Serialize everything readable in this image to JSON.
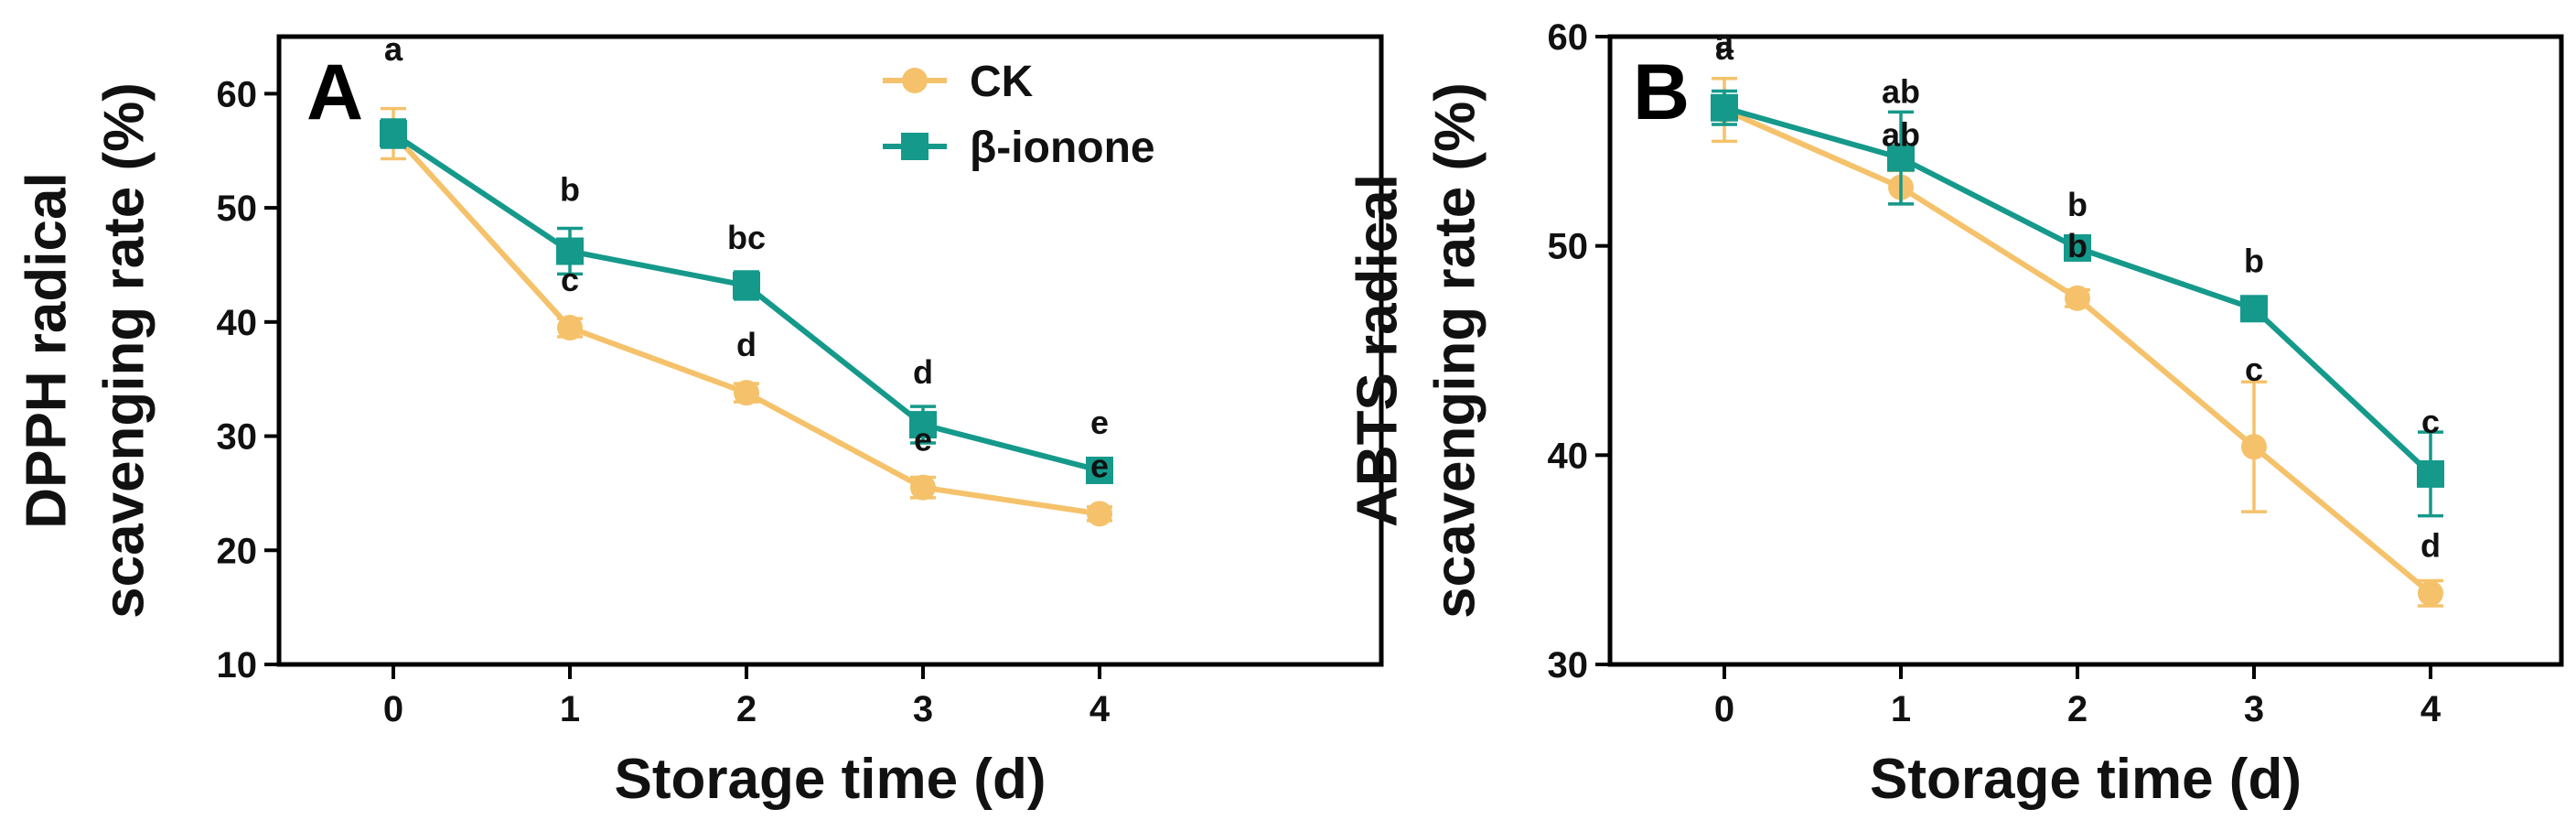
{
  "colors": {
    "ck": "#f5c26b",
    "ionone": "#15998b",
    "axis": "#000000"
  },
  "legend": {
    "items": [
      {
        "label": "CK",
        "series": "ck"
      },
      {
        "label": "β-ionone",
        "series": "ionone"
      }
    ]
  },
  "chart_data": [
    {
      "type": "line",
      "panel": "A",
      "title": "",
      "xlabel": "Storage time (d)",
      "ylabel_lines": [
        "DPPH radical",
        "scavenging rate (%)"
      ],
      "x": [
        0,
        1,
        2,
        3,
        4
      ],
      "xticks": [
        "0",
        "1",
        "2",
        "3",
        "4"
      ],
      "ylim": [
        10,
        65
      ],
      "yticks": [
        10,
        20,
        30,
        40,
        50,
        60
      ],
      "series": [
        {
          "name": "CK",
          "key": "ck",
          "marker": "circle",
          "values": [
            56.5,
            39.5,
            33.8,
            25.5,
            23.2
          ],
          "errors": [
            2.2,
            0.8,
            0.8,
            0.9,
            0.6
          ],
          "labels": [
            "a",
            "c",
            "d",
            "e",
            "e"
          ]
        },
        {
          "name": "β-ionone",
          "key": "ionone",
          "marker": "square",
          "values": [
            56.5,
            46.2,
            43.2,
            31.0,
            27.0
          ],
          "errors": [
            1.2,
            2.0,
            1.2,
            1.6,
            0.7
          ],
          "labels": [
            "a",
            "b",
            "bc",
            "d",
            "e"
          ]
        }
      ]
    },
    {
      "type": "line",
      "panel": "B",
      "title": "",
      "xlabel": "Storage time (d)",
      "ylabel_lines": [
        "ABTS radical",
        "scavenging rate (%)"
      ],
      "x": [
        0,
        1,
        2,
        3,
        4
      ],
      "xticks": [
        "0",
        "1",
        "2",
        "3",
        "4"
      ],
      "ylim": [
        30,
        60
      ],
      "yticks": [
        30,
        40,
        50,
        60
      ],
      "series": [
        {
          "name": "CK",
          "key": "ck",
          "marker": "circle",
          "values": [
            56.5,
            52.8,
            47.5,
            40.4,
            33.4
          ],
          "errors": [
            1.5,
            0.8,
            0.4,
            3.1,
            0.6
          ],
          "labels": [
            "a",
            "ab",
            "b",
            "c",
            "d"
          ]
        },
        {
          "name": "β-ionone",
          "key": "ionone",
          "marker": "square",
          "values": [
            56.6,
            54.2,
            49.9,
            47.0,
            39.1
          ],
          "errors": [
            0.8,
            2.2,
            0.3,
            0.3,
            2.0
          ],
          "labels": [
            "a",
            "ab",
            "b",
            "b",
            "c"
          ]
        }
      ]
    }
  ]
}
